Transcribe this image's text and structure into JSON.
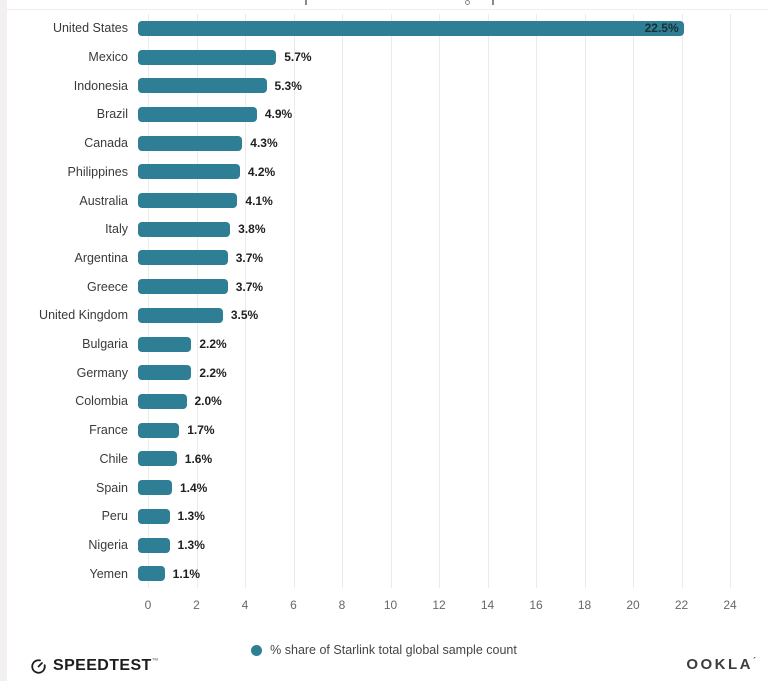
{
  "chart_data": {
    "type": "bar",
    "orientation": "horizontal",
    "categories": [
      "United States",
      "Mexico",
      "Indonesia",
      "Brazil",
      "Canada",
      "Philippines",
      "Australia",
      "Italy",
      "Argentina",
      "Greece",
      "United Kingdom",
      "Bulgaria",
      "Germany",
      "Colombia",
      "France",
      "Chile",
      "Spain",
      "Peru",
      "Nigeria",
      "Yemen"
    ],
    "values": [
      22.5,
      5.7,
      5.3,
      4.9,
      4.3,
      4.2,
      4.1,
      3.8,
      3.7,
      3.7,
      3.5,
      2.2,
      2.2,
      2.0,
      1.7,
      1.6,
      1.4,
      1.3,
      1.3,
      1.1
    ],
    "value_labels": [
      "22.5%",
      "5.7%",
      "5.3%",
      "4.9%",
      "4.3%",
      "4.2%",
      "4.1%",
      "3.8%",
      "3.7%",
      "3.7%",
      "3.5%",
      "2.2%",
      "2.2%",
      "2.0%",
      "1.7%",
      "1.6%",
      "1.4%",
      "1.3%",
      "1.3%",
      "1.1%"
    ],
    "xlabel": "",
    "ylabel": "",
    "xlim": [
      0,
      24
    ],
    "x_ticks": [
      0,
      2,
      4,
      6,
      8,
      10,
      12,
      14,
      16,
      18,
      20,
      22,
      24
    ],
    "grid": "vertical",
    "bar_color": "#2e7f96",
    "legend": {
      "label": "% share of Starlink total global sample count",
      "position": "bottom",
      "marker_color": "#2e7f96"
    }
  },
  "footer": {
    "speedtest_label": "SPEEDTEST",
    "speedtest_tm": "™",
    "ookla_label": "OOKLA",
    "ookla_mark": "´"
  },
  "colors": {
    "bar": "#2e7f96",
    "gridline": "#ebebee",
    "tick_label": "#67676c",
    "category_label": "#3a3a3a",
    "value_label": "#1f1f1f",
    "legend_text": "#454545",
    "left_strip": "#f2f0f1",
    "logo_dark": "#1d1d1d"
  }
}
